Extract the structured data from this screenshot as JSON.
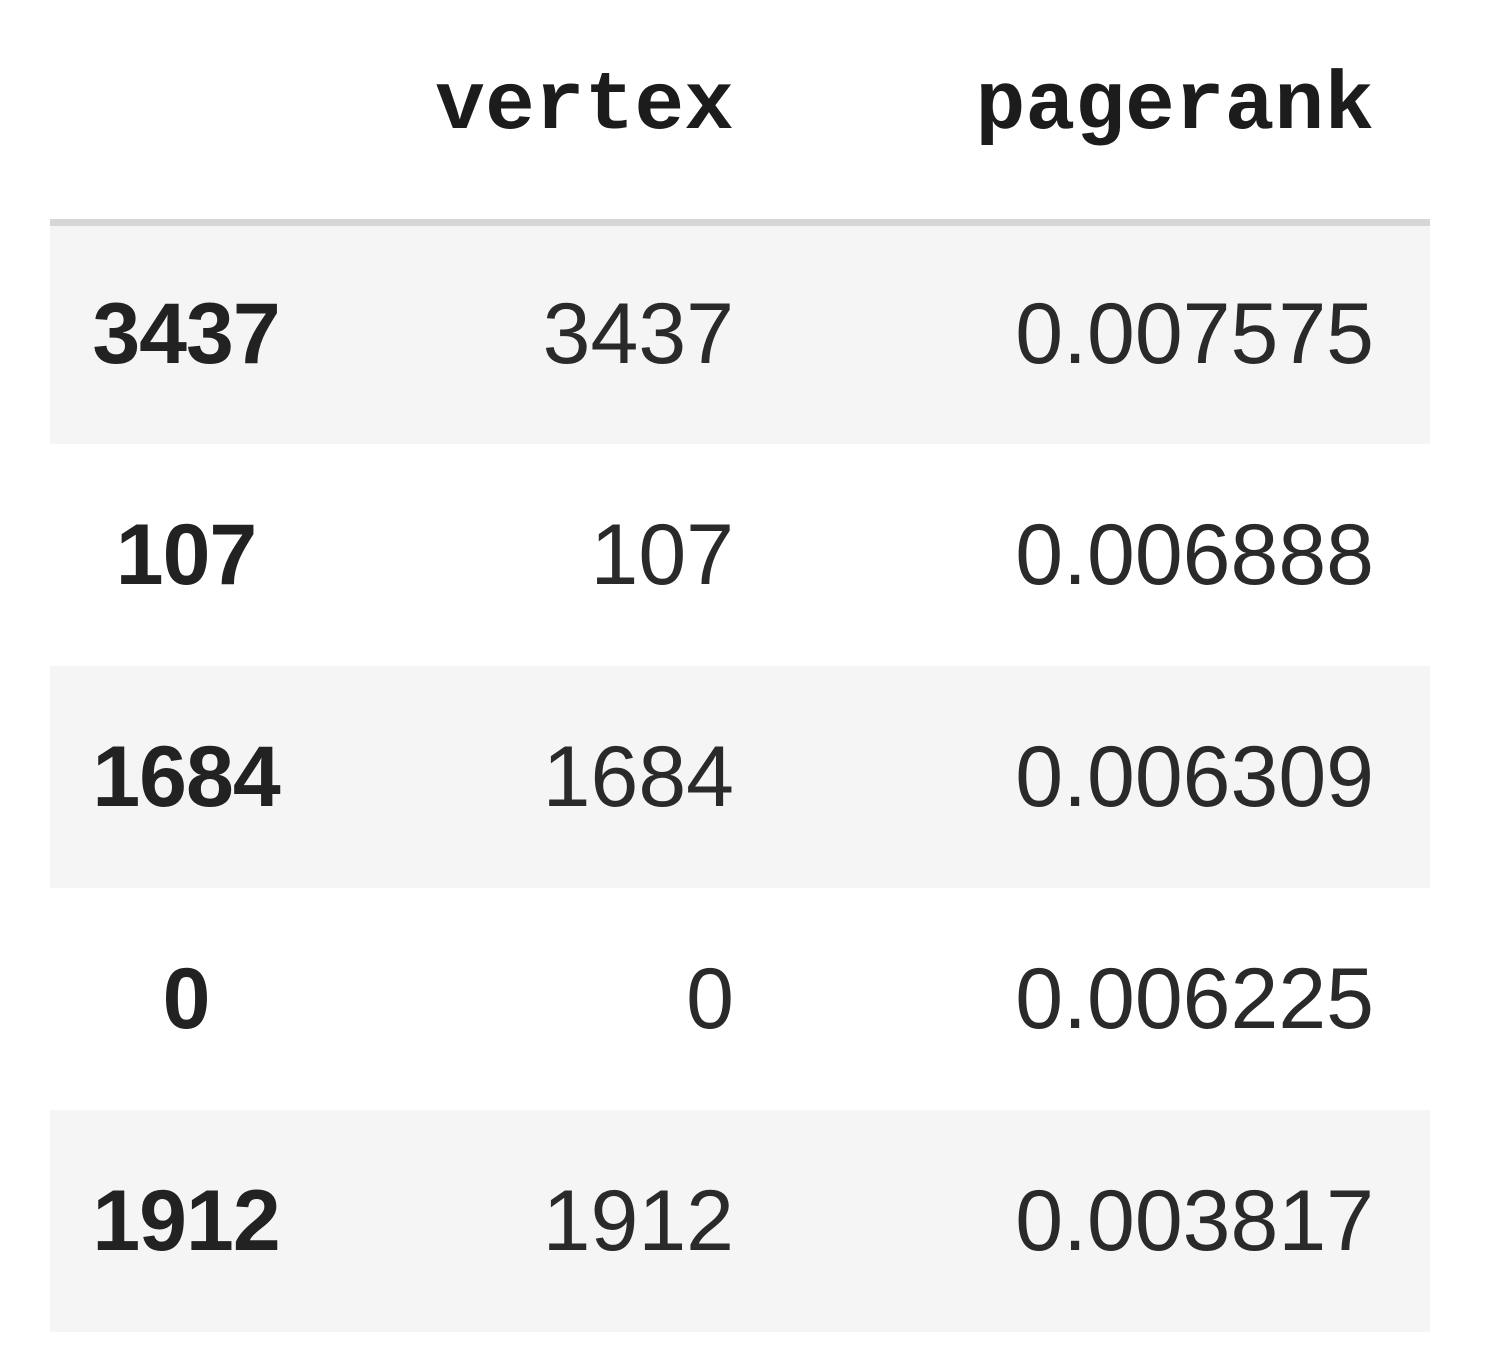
{
  "table": {
    "columns": {
      "index": "",
      "vertex": "vertex",
      "pagerank": "pagerank"
    },
    "rows": [
      {
        "index": "3437",
        "vertex": "3437",
        "pagerank": "0.007575"
      },
      {
        "index": "107",
        "vertex": "107",
        "pagerank": "0.006888"
      },
      {
        "index": "1684",
        "vertex": "1684",
        "pagerank": "0.006309"
      },
      {
        "index": "0",
        "vertex": "0",
        "pagerank": "0.006225"
      },
      {
        "index": "1912",
        "vertex": "1912",
        "pagerank": "0.003817"
      }
    ]
  },
  "colors": {
    "striped_row": "#f5f5f5",
    "header_rule": "#d6d6d6",
    "text": "#222222"
  }
}
